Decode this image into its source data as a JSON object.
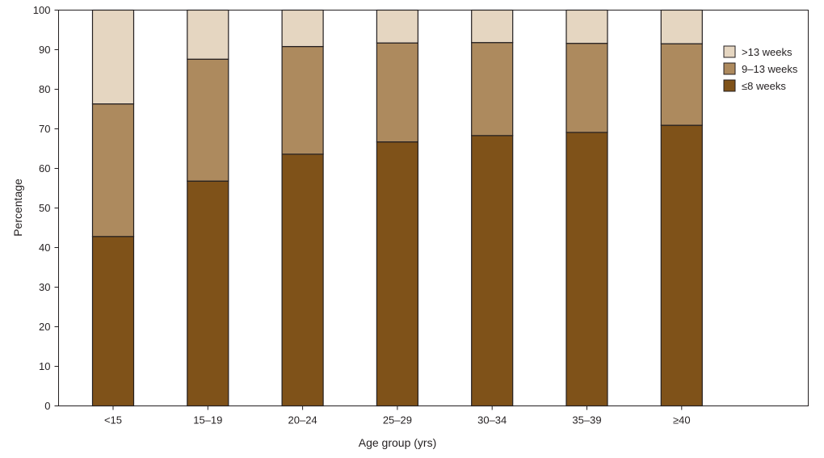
{
  "chart_data": {
    "type": "bar",
    "stacked": true,
    "title": "",
    "xlabel": "Age group (yrs)",
    "ylabel": "Percentage",
    "ylim": [
      0,
      100
    ],
    "yticks": [
      0,
      10,
      20,
      30,
      40,
      50,
      60,
      70,
      80,
      90,
      100
    ],
    "grid": false,
    "legend_position": "top-right",
    "categories": [
      "<15",
      "15–19",
      "20–24",
      "25–29",
      "30–34",
      "35–39",
      "≥40"
    ],
    "series": [
      {
        "name": "≤8 weeks",
        "color": "#7f5219",
        "values": [
          42.8,
          56.8,
          63.6,
          66.7,
          68.3,
          69.1,
          70.9
        ]
      },
      {
        "name": "9–13 weeks",
        "color": "#ad8a5e",
        "values": [
          33.5,
          30.8,
          27.2,
          25.0,
          23.5,
          22.5,
          20.6
        ]
      },
      {
        "name": ">13 weeks",
        "color": "#e5d6c1",
        "values": [
          23.7,
          12.4,
          9.2,
          8.3,
          8.2,
          8.4,
          8.5
        ]
      }
    ],
    "legend_order": [
      ">13 weeks",
      "9–13 weeks",
      "≤8 weeks"
    ]
  }
}
